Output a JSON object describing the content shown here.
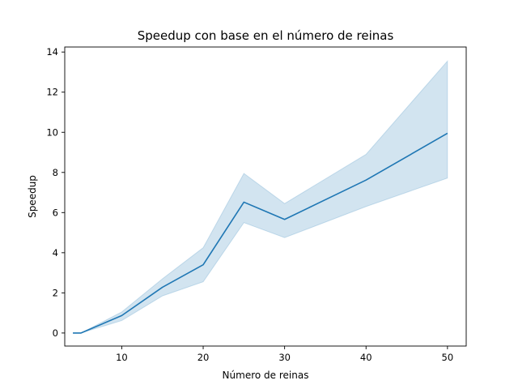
{
  "chart_data": {
    "type": "line",
    "title": "Speedup con base en el número de reinas",
    "xlabel": "Número de reinas",
    "ylabel": "Speedup",
    "xlim": [
      3.0,
      52.3
    ],
    "ylim": [
      -0.65,
      14.25
    ],
    "xticks": [
      10,
      20,
      30,
      40,
      50
    ],
    "yticks": [
      0,
      2,
      4,
      6,
      8,
      10,
      12,
      14
    ],
    "grid": false,
    "series": [
      {
        "color": "#1f77b4",
        "x": [
          4,
          5,
          10,
          15,
          20,
          25,
          30,
          40,
          50
        ],
        "y": [
          0.0,
          0.0,
          0.87,
          2.28,
          3.4,
          6.52,
          5.66,
          7.62,
          9.95
        ],
        "ci_lower": [
          0.0,
          0.0,
          0.62,
          1.85,
          2.55,
          5.5,
          4.75,
          6.3,
          7.72
        ],
        "ci_upper": [
          0.0,
          0.0,
          1.05,
          2.7,
          4.25,
          7.95,
          6.45,
          8.9,
          13.55
        ]
      }
    ]
  }
}
